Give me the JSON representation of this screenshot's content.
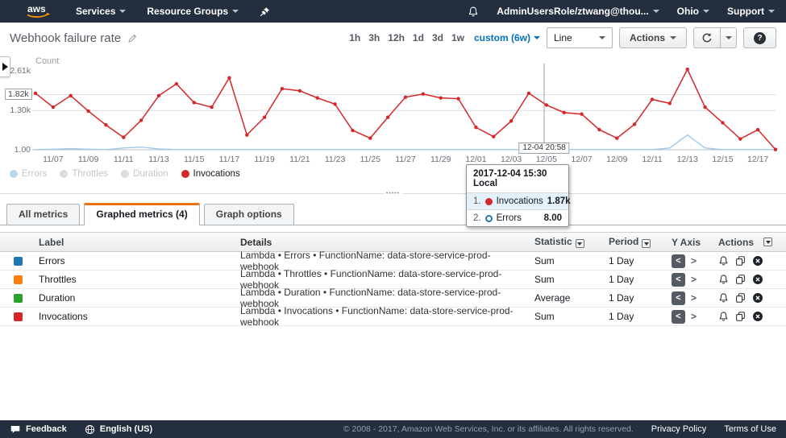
{
  "topnav": {
    "services": "Services",
    "resource_groups": "Resource Groups",
    "user": "AdminUsersRole/ztwang@thou...",
    "region": "Ohio",
    "support": "Support"
  },
  "page": {
    "title": "Webhook failure rate"
  },
  "toolbar": {
    "ranges": [
      "1h",
      "3h",
      "12h",
      "1d",
      "3d",
      "1w"
    ],
    "custom_label": "custom (6w)",
    "chart_type_label": "Line",
    "actions_label": "Actions"
  },
  "chart_data": {
    "type": "line",
    "title": "Webhook failure rate",
    "ylabel": "Count",
    "ylim": [
      1,
      2610
    ],
    "grid": true,
    "legend_position": "bottom-left",
    "x": [
      "11/06",
      "11/07",
      "11/08",
      "11/09",
      "11/10",
      "11/11",
      "11/12",
      "11/13",
      "11/14",
      "11/15",
      "11/16",
      "11/17",
      "11/18",
      "11/19",
      "11/20",
      "11/21",
      "11/22",
      "11/23",
      "11/24",
      "11/25",
      "11/26",
      "11/27",
      "11/28",
      "11/29",
      "11/30",
      "12/01",
      "12/02",
      "12/03",
      "12/04",
      "12/05",
      "12/06",
      "12/07",
      "12/08",
      "12/09",
      "12/10",
      "12/11",
      "12/12",
      "12/13",
      "12/14",
      "12/15",
      "12/16",
      "12/17",
      "12/18"
    ],
    "series": [
      {
        "name": "Invocations",
        "color": "#d62728",
        "values": [
          1870,
          1410,
          1790,
          1280,
          820,
          410,
          975,
          1790,
          2180,
          1560,
          1410,
          2380,
          490,
          1075,
          2020,
          1950,
          1715,
          1510,
          640,
          385,
          1075,
          1740,
          1845,
          1715,
          1690,
          740,
          435,
          950,
          1870,
          1480,
          1230,
          1180,
          665,
          385,
          845,
          1665,
          1535,
          2660,
          1410,
          895,
          360,
          665,
          10
        ]
      },
      {
        "name": "Errors",
        "color": "#9ecae9",
        "values": [
          5,
          20,
          40,
          20,
          5,
          60,
          90,
          30,
          5,
          5,
          5,
          5,
          5,
          5,
          5,
          5,
          5,
          5,
          5,
          5,
          5,
          5,
          5,
          5,
          5,
          5,
          5,
          5,
          8,
          5,
          5,
          5,
          5,
          5,
          5,
          5,
          60,
          490,
          60,
          5,
          5,
          5,
          5
        ]
      }
    ],
    "x_ticks": {
      "labels": [
        "11/07",
        "11/09",
        "11/11",
        "11/13",
        "11/15",
        "11/17",
        "11/19",
        "11/21",
        "11/23",
        "11/25",
        "11/27",
        "11/29",
        "12/01",
        "12/03",
        "12/05",
        "12/07",
        "12/09",
        "12/11",
        "12/13",
        "12/15",
        "12/17"
      ],
      "first_index": 1,
      "step": 2
    },
    "y_ticks": [
      {
        "label": "2.61k",
        "value": 2610
      },
      {
        "label": "1.30k",
        "value": 1300
      },
      {
        "label": "1.00",
        "value": 1
      }
    ],
    "y_annotation": {
      "label": "1.82k",
      "value": 1820
    },
    "gridlines": [
      1820,
      1300
    ],
    "crosshair": {
      "index": 28.87,
      "label": "12-04 20:58",
      "hover_series": "Errors",
      "hover_value": 8
    },
    "tooltip": {
      "title": "2017-12-04 15:30 Local",
      "rows": [
        {
          "rank": "1.",
          "name": "Invocations",
          "value": "1.87k",
          "marker_color": "#d62728",
          "marker_style": "filled",
          "highlighted": true
        },
        {
          "rank": "2.",
          "name": "Errors",
          "value": "8.00",
          "marker_color": "#1f77b4",
          "marker_style": "open",
          "highlighted": false
        }
      ]
    },
    "legend": {
      "items": [
        {
          "label": "Errors",
          "color": "#a6cee3",
          "muted": true
        },
        {
          "label": "Throttles",
          "color": "#cfd4d8",
          "muted": true
        },
        {
          "label": "Duration",
          "color": "#cfd4d8",
          "muted": true
        },
        {
          "label": "Invocations",
          "color": "#d62728",
          "muted": false
        }
      ]
    }
  },
  "panel": {
    "tabs": [
      {
        "label": "All metrics",
        "active": false
      },
      {
        "label": "Graphed metrics (4)",
        "active": true
      },
      {
        "label": "Graph options",
        "active": false
      }
    ]
  },
  "table": {
    "headers": {
      "label": "Label",
      "details": "Details",
      "statistic": "Statistic",
      "period": "Period",
      "y_axis": "Y Axis",
      "actions": "Actions"
    },
    "rows": [
      {
        "color": "#1f77b4",
        "label": "Errors",
        "details": "Lambda • Errors • FunctionName: data-store-service-prod-webhook",
        "statistic": "Sum",
        "period": "1 Day"
      },
      {
        "color": "#ff7f0e",
        "label": "Throttles",
        "details": "Lambda • Throttles • FunctionName: data-store-service-prod-webhook",
        "statistic": "Sum",
        "period": "1 Day"
      },
      {
        "color": "#2ca02c",
        "label": "Duration",
        "details": "Lambda • Duration • FunctionName: data-store-service-prod-webhook",
        "statistic": "Average",
        "period": "1 Day"
      },
      {
        "color": "#d62728",
        "label": "Invocations",
        "details": "Lambda • Invocations • FunctionName: data-store-service-prod-webhook",
        "statistic": "Sum",
        "period": "1 Day"
      }
    ]
  },
  "footer": {
    "feedback": "Feedback",
    "language": "English (US)",
    "copyright": "© 2008 - 2017, Amazon Web Services, Inc. or its affiliates. All rights reserved.",
    "privacy": "Privacy Policy",
    "terms": "Terms of Use"
  }
}
